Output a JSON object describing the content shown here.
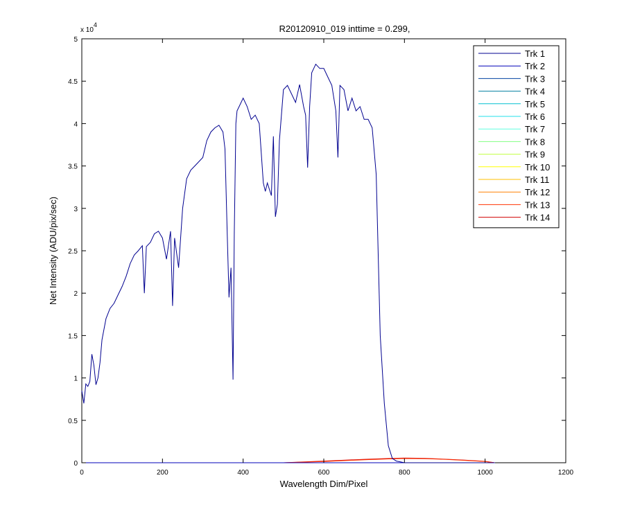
{
  "chart_data": {
    "type": "line",
    "title": "R20120910_019 inttime = 0.299,",
    "xlabel": "Wavelength Dim/Pixel",
    "ylabel": "Net Intensity (ADU/pix/sec)",
    "xlim": [
      0,
      1200
    ],
    "ylim": [
      0,
      50000
    ],
    "x_ticks": [
      0,
      200,
      400,
      600,
      800,
      1000,
      1200
    ],
    "y_ticks": [
      0,
      5000,
      10000,
      15000,
      20000,
      25000,
      30000,
      35000,
      40000,
      45000,
      50000
    ],
    "y_tick_labels": [
      "0",
      "0.5",
      "1",
      "1.5",
      "2",
      "2.5",
      "3",
      "3.5",
      "4",
      "4.5",
      "5"
    ],
    "y_exponent_base": "x 10",
    "y_exponent_power": "4",
    "grid": false,
    "legend_position": "top-right",
    "series": [
      {
        "name": "Trk 1",
        "color": "#00008f",
        "x": [
          0,
          5,
          10,
          15,
          20,
          25,
          30,
          35,
          40,
          45,
          50,
          60,
          70,
          80,
          90,
          100,
          110,
          120,
          130,
          140,
          150,
          155,
          160,
          170,
          180,
          190,
          200,
          210,
          220,
          225,
          230,
          240,
          250,
          260,
          270,
          280,
          290,
          300,
          310,
          320,
          330,
          340,
          350,
          355,
          360,
          365,
          370,
          375,
          378,
          382,
          385,
          390,
          400,
          410,
          420,
          430,
          440,
          450,
          455,
          460,
          470,
          475,
          480,
          485,
          490,
          500,
          510,
          520,
          530,
          540,
          550,
          555,
          560,
          565,
          570,
          580,
          590,
          600,
          610,
          620,
          630,
          635,
          640,
          650,
          660,
          670,
          680,
          690,
          700,
          710,
          720,
          730,
          740,
          750,
          760,
          770,
          780,
          790,
          800,
          820,
          840,
          860,
          870,
          880,
          900,
          1000,
          1020
        ],
        "y": [
          8500,
          7000,
          9300,
          9000,
          9600,
          12800,
          11500,
          9200,
          10000,
          11800,
          14500,
          17000,
          18200,
          18800,
          19800,
          20800,
          22000,
          23500,
          24500,
          25000,
          25600,
          20000,
          25500,
          26000,
          27000,
          27300,
          26500,
          24000,
          27300,
          18500,
          26500,
          23000,
          30000,
          33500,
          34500,
          35000,
          35500,
          36000,
          38000,
          39000,
          39500,
          39800,
          39000,
          37000,
          28000,
          19500,
          23000,
          9800,
          27000,
          40000,
          41500,
          42000,
          43000,
          42000,
          40500,
          41000,
          40000,
          33000,
          32000,
          33000,
          31500,
          38500,
          29000,
          30500,
          38000,
          44000,
          44500,
          43500,
          42500,
          44600,
          42000,
          41000,
          34800,
          42000,
          46000,
          47000,
          46500,
          46500,
          45500,
          44500,
          41500,
          36000,
          44500,
          44000,
          41500,
          43000,
          41500,
          42000,
          40500,
          40500,
          39500,
          34000,
          15000,
          7000,
          2000,
          500,
          200,
          100,
          0,
          0,
          0,
          0,
          0,
          0,
          0,
          0,
          0
        ]
      },
      {
        "name": "Trk 2",
        "color": "#0000b8",
        "x": [
          0,
          1024
        ],
        "y": [
          0,
          0
        ]
      },
      {
        "name": "Trk 3",
        "color": "#0040a0",
        "x": [
          0,
          1024
        ],
        "y": [
          0,
          0
        ]
      },
      {
        "name": "Trk 4",
        "color": "#007fa0",
        "x": [
          0,
          1024
        ],
        "y": [
          0,
          0
        ]
      },
      {
        "name": "Trk 5",
        "color": "#00bfd0",
        "x": [
          0,
          1024
        ],
        "y": [
          0,
          0
        ]
      },
      {
        "name": "Trk 6",
        "color": "#20e0e8",
        "x": [
          0,
          1024
        ],
        "y": [
          0,
          0
        ]
      },
      {
        "name": "Trk 7",
        "color": "#60ffe0",
        "x": [
          0,
          1024
        ],
        "y": [
          0,
          0
        ]
      },
      {
        "name": "Trk 8",
        "color": "#80ff80",
        "x": [
          0,
          1024
        ],
        "y": [
          0,
          0
        ]
      },
      {
        "name": "Trk 9",
        "color": "#c0ff40",
        "x": [
          0,
          1024
        ],
        "y": [
          0,
          0
        ]
      },
      {
        "name": "Trk 10",
        "color": "#ffff00",
        "x": [
          0,
          1024
        ],
        "y": [
          0,
          0
        ]
      },
      {
        "name": "Trk 11",
        "color": "#ffc000",
        "x": [
          0,
          1024
        ],
        "y": [
          0,
          0
        ]
      },
      {
        "name": "Trk 12",
        "color": "#ff8000",
        "x": [
          0,
          1024
        ],
        "y": [
          0,
          0
        ]
      },
      {
        "name": "Trk 13",
        "color": "#ff3000",
        "x": [
          0,
          500,
          600,
          700,
          760,
          800,
          850,
          900,
          950,
          1000,
          1024
        ],
        "y": [
          0,
          0,
          150,
          350,
          450,
          500,
          480,
          400,
          280,
          150,
          0
        ]
      },
      {
        "name": "Trk 14",
        "color": "#d00000",
        "x": [
          0,
          500,
          600,
          700,
          760,
          800,
          850,
          900,
          950,
          1000,
          1024
        ],
        "y": [
          0,
          0,
          200,
          400,
          500,
          550,
          520,
          420,
          300,
          160,
          0
        ]
      }
    ]
  }
}
